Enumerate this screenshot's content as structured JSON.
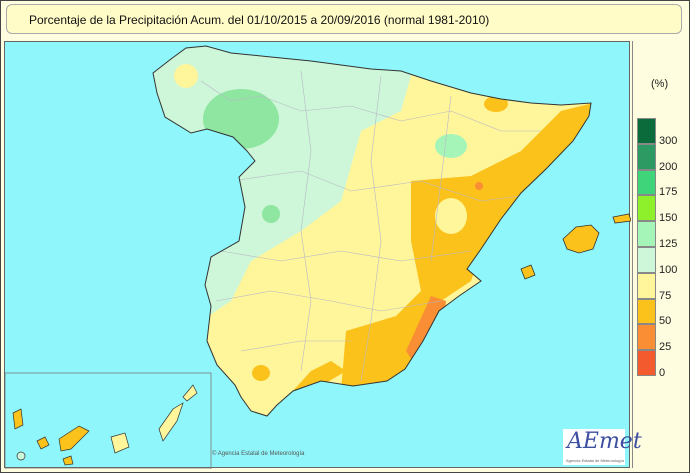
{
  "title": "Porcentaje de la Precipitación Acum. del 01/10/2015 a  20/09/2016  (normal 1981-2010)",
  "legend": {
    "unit": "(%)",
    "classes": [
      {
        "label": "300",
        "color": "#0b6b3a"
      },
      {
        "label": "200",
        "color": "#2e9a63"
      },
      {
        "label": "175",
        "color": "#3fd37a"
      },
      {
        "label": "150",
        "color": "#8ef02a"
      },
      {
        "label": "125",
        "color": "#a6f5b8"
      },
      {
        "label": "100",
        "color": "#cdf7d8"
      },
      {
        "label": "75",
        "color": "#fff59a"
      },
      {
        "label": "50",
        "color": "#fbc21c"
      },
      {
        "label": "25",
        "color": "#f98e34"
      },
      {
        "label": "0",
        "color": "#f35a2e"
      }
    ]
  },
  "colors": {
    "sea": "#8ff7fb",
    "near_normal": "#cdf7d8",
    "dry": "#fff59a",
    "very_dry": "#fbc21c",
    "wet": "#8fe6a0"
  },
  "credit": "© Agencia Estatal de Meteorología",
  "logo": {
    "text": "AEmet",
    "subtitle": "Agencia Estatal de Meteorología"
  }
}
